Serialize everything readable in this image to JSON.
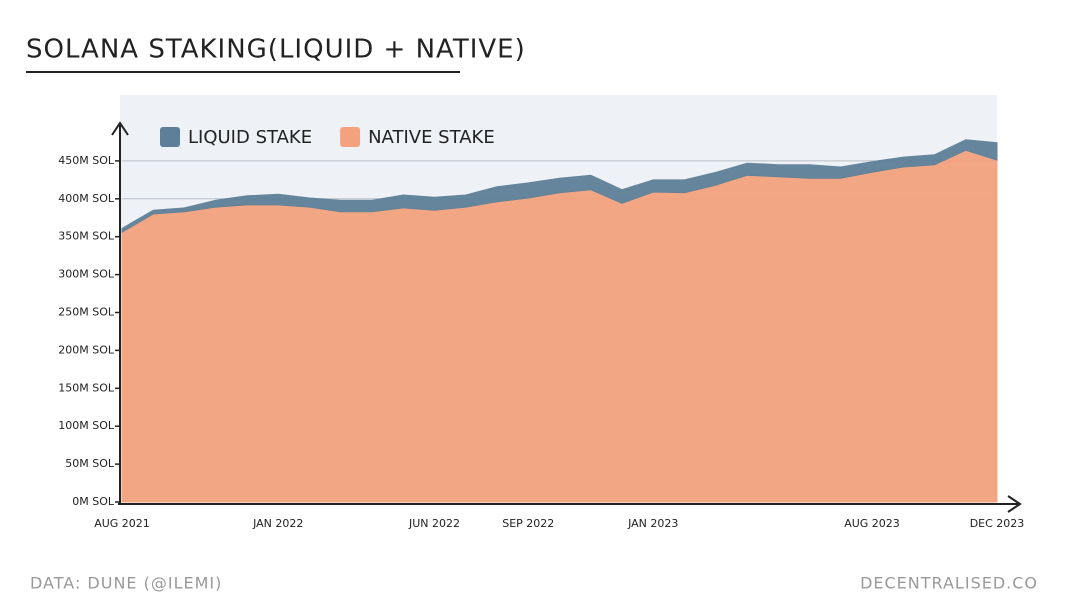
{
  "chart_data": {
    "type": "stacked-area",
    "title": "SOLANA STAKING(LIQUID + NATIVE)",
    "source": "DATA: DUNE (@ILEMI)",
    "credit": "DECENTRALISED.CO",
    "categories": [
      "AUG 2021",
      null,
      null,
      null,
      null,
      "JAN 2022",
      null,
      null,
      null,
      null,
      "JUN 2022",
      null,
      null,
      "SEP 2022",
      null,
      null,
      null,
      "JAN 2023",
      null,
      null,
      null,
      null,
      null,
      null,
      "AUG 2023",
      null,
      null,
      null,
      "DEC 2023"
    ],
    "series": [
      {
        "name": "NATIVE STAKE",
        "color": "#f4a27e",
        "values": [
          356,
          380,
          383,
          389,
          392,
          392,
          389,
          383,
          383,
          388,
          385,
          389,
          396,
          401,
          408,
          412,
          394,
          409,
          408,
          418,
          431,
          429,
          427,
          427,
          435,
          442,
          445,
          464,
          451
        ]
      },
      {
        "name": "LIQUID STAKE",
        "color": "#5d8098",
        "values": [
          5,
          5,
          5,
          9,
          12,
          14,
          12,
          15,
          15,
          17,
          17,
          16,
          20,
          20,
          19,
          19,
          18,
          16,
          17,
          17,
          16,
          16,
          18,
          15,
          14,
          13,
          13,
          14,
          23
        ]
      }
    ],
    "ylim": [
      0,
      500
    ],
    "yticks": [
      {
        "value": 0,
        "label": "0M SOL"
      },
      {
        "value": 50,
        "label": "50M SOL"
      },
      {
        "value": 100,
        "label": "100M SOL"
      },
      {
        "value": 150,
        "label": "150M SOL"
      },
      {
        "value": 200,
        "label": "200M SOL"
      },
      {
        "value": 250,
        "label": "250M SOL"
      },
      {
        "value": 300,
        "label": "300M SOL"
      },
      {
        "value": 350,
        "label": "350M SOL"
      },
      {
        "value": 400,
        "label": "400M SOL"
      },
      {
        "value": 450,
        "label": "450M SOL"
      }
    ],
    "gridlines": [
      400,
      450
    ],
    "legend": "top-left"
  }
}
